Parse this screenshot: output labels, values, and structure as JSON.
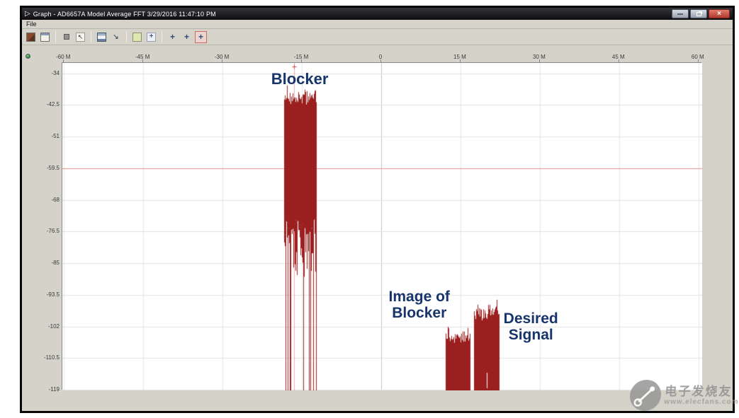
{
  "window": {
    "title": "Graph - AD6657A Model Average FFT 3/29/2016 11:47:10 PM",
    "controls": {
      "minimize_icon": "minimize",
      "restore_icon": "restore",
      "close_icon": "×"
    }
  },
  "menu": {
    "file_label": "File"
  },
  "toolbar": {
    "items": [
      {
        "name": "graph-palette-icon",
        "kind": "graph",
        "glyph": ""
      },
      {
        "name": "window-icon",
        "kind": "window",
        "glyph": ""
      },
      {
        "name": "sep"
      },
      {
        "name": "autoscale-icon",
        "kind": "sq",
        "glyph": ""
      },
      {
        "name": "cursor-tool-icon",
        "kind": "cursor",
        "glyph": "↖"
      },
      {
        "name": "sep"
      },
      {
        "name": "save-icon",
        "kind": "save",
        "glyph": ""
      },
      {
        "name": "export-icon",
        "kind": "export",
        "glyph": "↘"
      },
      {
        "name": "sep"
      },
      {
        "name": "panel-icon",
        "kind": "panel",
        "glyph": ""
      },
      {
        "name": "zoom-grid-icon",
        "kind": "grid",
        "glyph": "+"
      },
      {
        "name": "sep"
      },
      {
        "name": "pan-tool-icon",
        "kind": "cross",
        "glyph": "+"
      },
      {
        "name": "zoom-tool-icon",
        "kind": "cross",
        "glyph": "+"
      },
      {
        "name": "crosshair-tool-icon",
        "kind": "cross",
        "glyph": "+",
        "selected": true
      }
    ]
  },
  "chart_data": {
    "type": "area",
    "title": "AD6657A Model Average FFT",
    "x_tick_labels": [
      "-60 M",
      "-45 M",
      "-30 M",
      "-15 M",
      "0",
      "15 M",
      "30 M",
      "45 M",
      "60 M"
    ],
    "x_tick_values_mhz": [
      -60,
      -45,
      -30,
      -15,
      0,
      15,
      30,
      45,
      60
    ],
    "xlim_mhz": [
      -60.3,
      60.7
    ],
    "y_tick_values_db": [
      -34,
      -42.5,
      -51,
      -59.5,
      -68,
      -76.5,
      -85,
      -93.5,
      -102,
      -110.5,
      -119
    ],
    "ylim_db": [
      -119.2,
      -31.2
    ],
    "grid": true,
    "signal_color": "#9b1f1f",
    "series": [
      {
        "name": "Blocker",
        "start_mhz": -18.3,
        "end_mhz": -12.3,
        "top_db": -39,
        "body_floor_db": -73,
        "spike_floor_db": -90
      },
      {
        "name": "Image of Blocker",
        "start_mhz": 12.2,
        "end_mhz": 16.7,
        "top_db": -103,
        "body_floor_db": -119.2
      },
      {
        "name": "Desired Signal",
        "start_mhz": 17.5,
        "end_mhz": 22.2,
        "top_db": -97,
        "body_floor_db": -119.2
      }
    ],
    "cursor": {
      "x_mhz": -16.5,
      "y_db": -59.5,
      "color": "#e06060"
    },
    "annotations": [
      {
        "text": "Blocker",
        "x_mhz": -15.4,
        "y_db": -33.3
      },
      {
        "text": "Image of\nBlocker",
        "x_mhz": 7.2,
        "y_db": -91.8
      },
      {
        "text": "Desired\nSignal",
        "x_mhz": 28.3,
        "y_db": -97.7
      }
    ]
  },
  "watermark": {
    "logo_text": "电子发烧友",
    "url_text": "www.elecfans.com"
  }
}
